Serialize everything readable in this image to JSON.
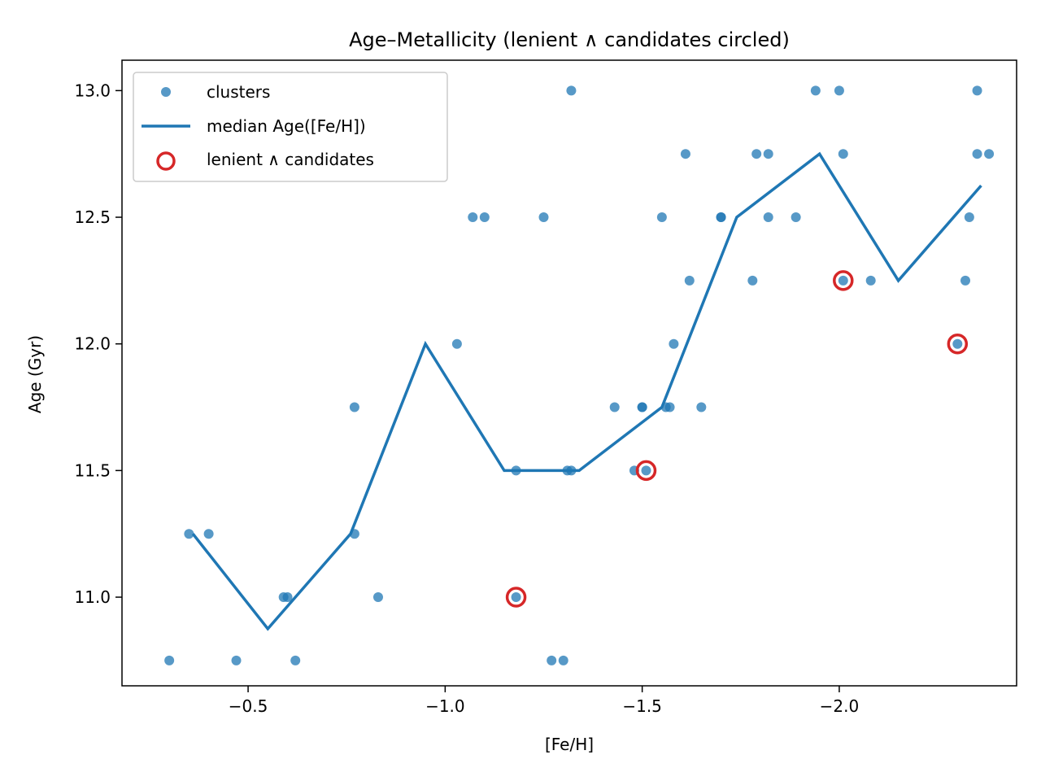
{
  "chart_data": {
    "type": "scatter",
    "title": "Age–Metallicity (lenient ∧ candidates circled)",
    "xlabel": "[Fe/H]",
    "ylabel": "Age (Gyr)",
    "xlim": [
      -0.18,
      -2.45
    ],
    "ylim": [
      10.65,
      13.12
    ],
    "x_inverted": true,
    "xticks": [
      -0.5,
      -1.0,
      -1.5,
      -2.0
    ],
    "xtick_labels": [
      "−0.5",
      "−1.0",
      "−1.5",
      "−2.0"
    ],
    "yticks": [
      11.0,
      11.5,
      12.0,
      12.5,
      13.0
    ],
    "ytick_labels": [
      "11.0",
      "11.5",
      "12.0",
      "12.5",
      "13.0"
    ],
    "grid": false,
    "legend_position": "upper-left",
    "colors": {
      "clusters": "#1f77b4",
      "median": "#1f77b4",
      "candidates": "#d62728"
    },
    "series": [
      {
        "name": "clusters",
        "kind": "scatter",
        "points": [
          {
            "x": -0.3,
            "y": 10.75
          },
          {
            "x": -0.35,
            "y": 11.25
          },
          {
            "x": -0.4,
            "y": 11.25
          },
          {
            "x": -0.47,
            "y": 10.75
          },
          {
            "x": -0.59,
            "y": 11.0
          },
          {
            "x": -0.6,
            "y": 11.0
          },
          {
            "x": -0.62,
            "y": 10.75
          },
          {
            "x": -0.77,
            "y": 11.75
          },
          {
            "x": -0.77,
            "y": 11.25
          },
          {
            "x": -0.83,
            "y": 11.0
          },
          {
            "x": -1.03,
            "y": 12.0
          },
          {
            "x": -1.07,
            "y": 12.5
          },
          {
            "x": -1.1,
            "y": 12.5
          },
          {
            "x": -1.18,
            "y": 11.5
          },
          {
            "x": -1.18,
            "y": 11.0
          },
          {
            "x": -1.25,
            "y": 12.5
          },
          {
            "x": -1.27,
            "y": 10.75
          },
          {
            "x": -1.3,
            "y": 10.75
          },
          {
            "x": -1.31,
            "y": 11.5
          },
          {
            "x": -1.32,
            "y": 13.0
          },
          {
            "x": -1.32,
            "y": 11.5
          },
          {
            "x": -1.43,
            "y": 11.75
          },
          {
            "x": -1.48,
            "y": 11.5
          },
          {
            "x": -1.5,
            "y": 11.75
          },
          {
            "x": -1.5,
            "y": 11.75
          },
          {
            "x": -1.51,
            "y": 11.5
          },
          {
            "x": -1.55,
            "y": 12.5
          },
          {
            "x": -1.56,
            "y": 11.75
          },
          {
            "x": -1.57,
            "y": 11.75
          },
          {
            "x": -1.58,
            "y": 12.0
          },
          {
            "x": -1.61,
            "y": 12.75
          },
          {
            "x": -1.62,
            "y": 12.25
          },
          {
            "x": -1.65,
            "y": 11.75
          },
          {
            "x": -1.7,
            "y": 12.5
          },
          {
            "x": -1.7,
            "y": 12.5
          },
          {
            "x": -1.78,
            "y": 12.25
          },
          {
            "x": -1.79,
            "y": 12.75
          },
          {
            "x": -1.82,
            "y": 12.75
          },
          {
            "x": -1.82,
            "y": 12.5
          },
          {
            "x": -1.89,
            "y": 12.5
          },
          {
            "x": -1.94,
            "y": 13.0
          },
          {
            "x": -2.0,
            "y": 13.0
          },
          {
            "x": -2.01,
            "y": 12.25
          },
          {
            "x": -2.01,
            "y": 12.75
          },
          {
            "x": -2.08,
            "y": 12.25
          },
          {
            "x": -2.3,
            "y": 12.0
          },
          {
            "x": -2.32,
            "y": 12.25
          },
          {
            "x": -2.33,
            "y": 12.5
          },
          {
            "x": -2.35,
            "y": 13.0
          },
          {
            "x": -2.35,
            "y": 12.75
          },
          {
            "x": -2.38,
            "y": 12.75
          }
        ]
      },
      {
        "name": "median Age([Fe/H])",
        "kind": "line",
        "points": [
          {
            "x": -0.36,
            "y": 11.25
          },
          {
            "x": -0.55,
            "y": 10.875
          },
          {
            "x": -0.76,
            "y": 11.25
          },
          {
            "x": -0.95,
            "y": 12.0
          },
          {
            "x": -1.15,
            "y": 11.5
          },
          {
            "x": -1.34,
            "y": 11.5
          },
          {
            "x": -1.55,
            "y": 11.75
          },
          {
            "x": -1.74,
            "y": 12.5
          },
          {
            "x": -1.95,
            "y": 12.75
          },
          {
            "x": -2.15,
            "y": 12.25
          },
          {
            "x": -2.36,
            "y": 12.625
          }
        ]
      },
      {
        "name": "lenient ∧ candidates",
        "kind": "scatter-ring",
        "points": [
          {
            "x": -1.18,
            "y": 11.0
          },
          {
            "x": -1.51,
            "y": 11.5
          },
          {
            "x": -2.01,
            "y": 12.25
          },
          {
            "x": -2.3,
            "y": 12.0
          }
        ]
      }
    ],
    "legend": [
      {
        "label": "clusters",
        "kind": "scatter"
      },
      {
        "label": "median Age([Fe/H])",
        "kind": "line"
      },
      {
        "label": "lenient ∧ candidates",
        "kind": "scatter-ring"
      }
    ]
  }
}
